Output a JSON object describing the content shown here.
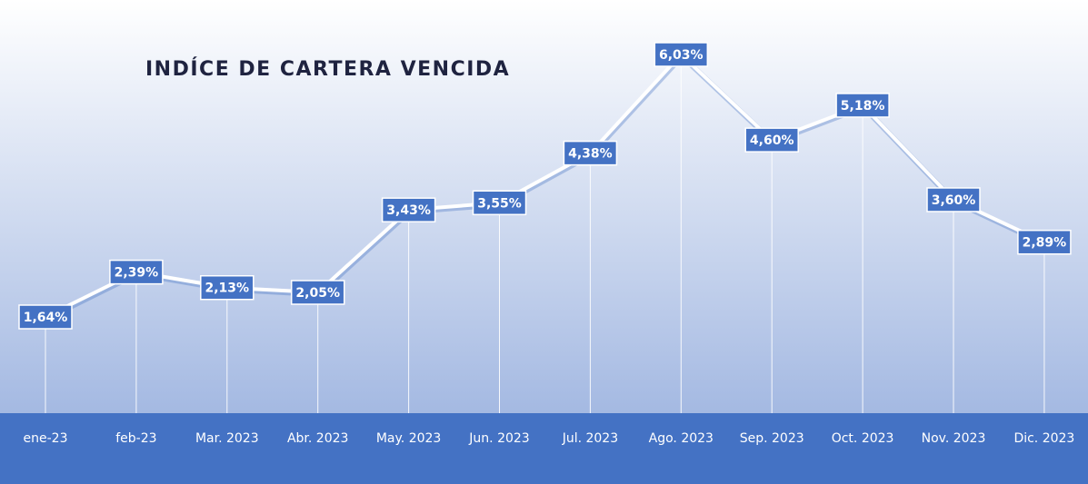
{
  "chart_data": {
    "type": "line",
    "title": "INDÍCE DE CARTERA VENCIDA",
    "categories": [
      "ene-23",
      "feb-23",
      "Mar. 2023",
      "Abr. 2023",
      "May. 2023",
      "Jun. 2023",
      "Jul. 2023",
      "Ago. 2023",
      "Sep. 2023",
      "Oct. 2023",
      "Nov. 2023",
      "Dic. 2023"
    ],
    "values": [
      1.64,
      2.39,
      2.13,
      2.05,
      3.43,
      3.55,
      4.38,
      6.03,
      4.6,
      5.18,
      3.6,
      2.89
    ],
    "value_labels": [
      "1,64%",
      "2,39%",
      "2,13%",
      "2,05%",
      "3,43%",
      "3,55%",
      "4,38%",
      "6,03%",
      "4,60%",
      "5,18%",
      "3,60%",
      "2,89%"
    ],
    "color": "#ffffff",
    "label_color": "#4472c4"
  }
}
